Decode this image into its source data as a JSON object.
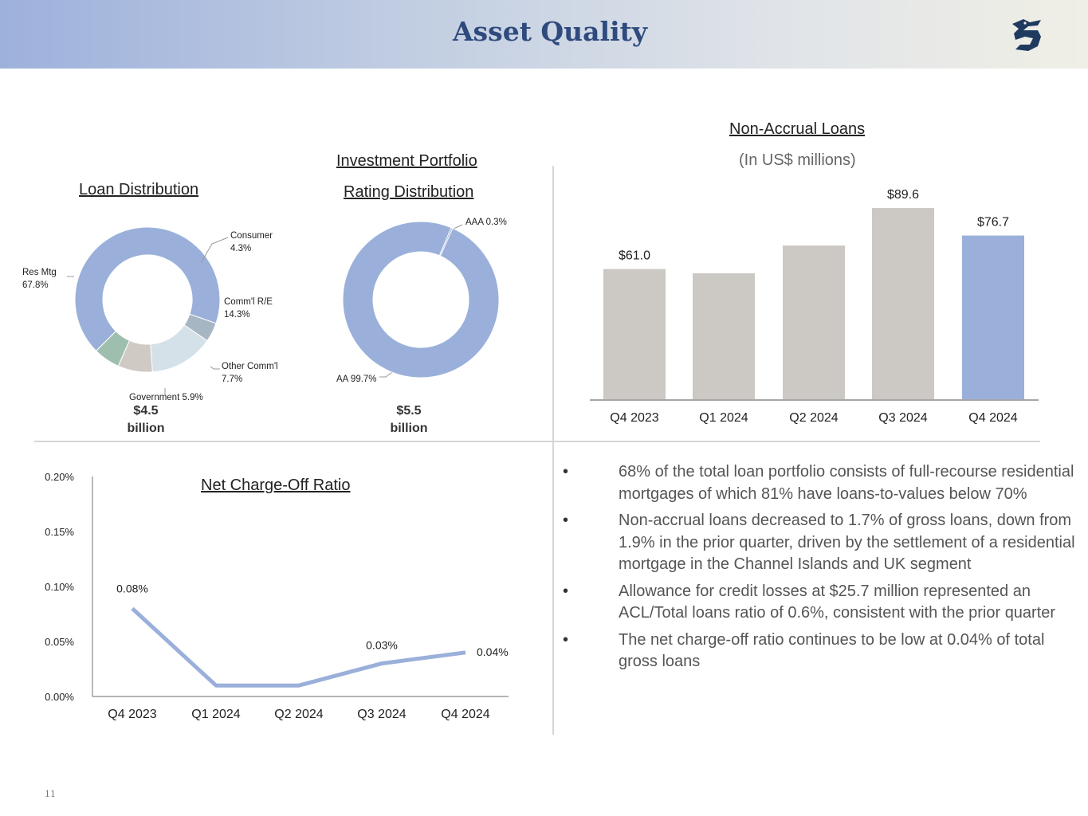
{
  "header": {
    "title": "Asset Quality",
    "logo_icon": "griffin-logo-icon"
  },
  "loan_distribution": {
    "title": "Loan Distribution",
    "total_value": "$4.5",
    "total_unit": "billion",
    "slices": [
      {
        "name": "Res Mtg",
        "value": "67.8%"
      },
      {
        "name": "Consumer",
        "value": "4.3%"
      },
      {
        "name": "Comm'l R/E",
        "value": "14.3%"
      },
      {
        "name": "Other Comm'l",
        "value": "7.7%"
      },
      {
        "name": "Government",
        "value": "5.9%"
      }
    ]
  },
  "investment_portfolio": {
    "title_line1": "Investment Portfolio",
    "title_line2": "Rating Distribution",
    "total_value": "$5.5",
    "total_unit": "billion",
    "slices": [
      {
        "name": "AAA",
        "value": "0.3%"
      },
      {
        "name": "AA",
        "value": "99.7%"
      }
    ]
  },
  "non_accrual": {
    "title": "Non-Accrual Loans",
    "subtitle": "(In US$ millions)"
  },
  "net_charge_off": {
    "title": "Net Charge-Off Ratio"
  },
  "bullets": [
    {
      "marker": "•",
      "text": "68% of the total loan portfolio consists of full-recourse residential mortgages of which 81% have loans-to-values below 70%"
    },
    {
      "marker": "•",
      "text": "Non-accrual loans decreased to 1.7% of gross loans, down from 1.9% in the prior quarter, driven by the settlement of a residential mortgage in the Channel Islands and UK segment"
    },
    {
      "marker": "•",
      "text": "Allowance for credit losses at $25.7 million represented an ACL/Total loans ratio of 0.6%, consistent with the prior quarter"
    },
    {
      "marker": "•",
      "text": "The net charge-off ratio continues to be low at 0.04% of total gross loans"
    }
  ],
  "page_number": "11",
  "colors": {
    "accent_blue": "#9ab0da",
    "bar_grey": "#ccc9c4",
    "title_navy": "#2f4a7d",
    "slice_res_mtg": "#9ab0da",
    "slice_consumer": "#a6b6c2",
    "slice_comm_re": "#d5e1e8",
    "slice_other_comm": "#cfcac4",
    "slice_government": "#9fbfae"
  },
  "chart_data": [
    {
      "type": "pie",
      "title": "Loan Distribution",
      "categories": [
        "Res Mtg",
        "Consumer",
        "Comm'l R/E",
        "Other Comm'l",
        "Government"
      ],
      "values": [
        67.8,
        4.3,
        14.3,
        7.7,
        5.9
      ],
      "unit": "%"
    },
    {
      "type": "pie",
      "title": "Investment Portfolio Rating Distribution",
      "categories": [
        "AAA",
        "AA"
      ],
      "values": [
        0.3,
        99.7
      ],
      "unit": "%"
    },
    {
      "type": "bar",
      "title": "Non-Accrual Loans",
      "subtitle": "(In US$ millions)",
      "categories": [
        "Q4 2023",
        "Q1 2024",
        "Q2 2024",
        "Q3 2024",
        "Q4 2024"
      ],
      "values": [
        61.0,
        59.0,
        72.0,
        89.6,
        76.7
      ],
      "labels": [
        "$61.0",
        "",
        "",
        "$89.6",
        "$76.7"
      ],
      "highlight_index": 4,
      "ylim": [
        0,
        100
      ]
    },
    {
      "type": "line",
      "title": "Net Charge-Off Ratio",
      "categories": [
        "Q4 2023",
        "Q1 2024",
        "Q2 2024",
        "Q3 2024",
        "Q4 2024"
      ],
      "values": [
        0.08,
        0.01,
        0.01,
        0.03,
        0.04
      ],
      "labels": [
        "0.08%",
        "",
        "",
        "0.03%",
        "0.04%"
      ],
      "yticks": [
        "0.00%",
        "0.05%",
        "0.10%",
        "0.15%",
        "0.20%"
      ],
      "ylim": [
        0,
        0.2
      ]
    }
  ]
}
